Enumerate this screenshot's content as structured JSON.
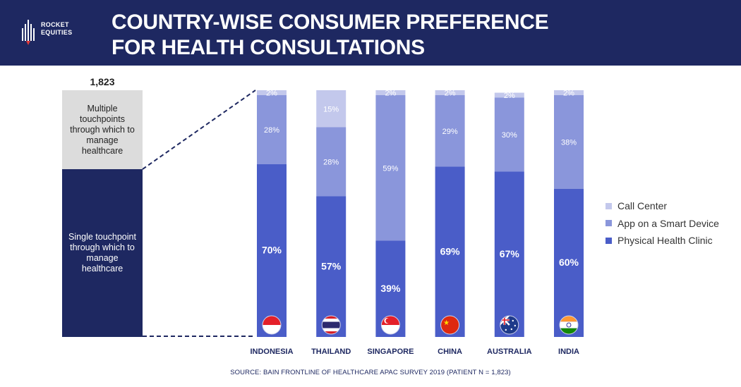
{
  "header": {
    "logo_line1": "ROCKET",
    "logo_line2": "EQUITIES",
    "title_line1": "COUNTRY-WISE CONSUMER PREFERENCE",
    "title_line2": "FOR HEALTH CONSULTATIONS"
  },
  "summary": {
    "total": "1,823",
    "multi_label": "Multiple touchpoints through which to manage healthcare",
    "single_label": "Single touchpoint through which to manage healthcare"
  },
  "legend": {
    "items": [
      "Call Center",
      "App on a Smart Device",
      "Physical Health Clinic"
    ]
  },
  "source": "SOURCE: BAIN FRONTLINE OF HEALTHCARE APAC SURVEY 2019 (PATIENT N = 1,823)",
  "colors": {
    "header_bg": "#1e2861",
    "clinic": "#4a5dc8",
    "app": "#8a96db",
    "call_center": "#c3c8ec",
    "multi_box": "#dcdcdc",
    "single_box": "#1e2861"
  },
  "chart_data": {
    "type": "bar",
    "stacked": true,
    "normalized": true,
    "categories": [
      "INDONESIA",
      "THAILAND",
      "SINGAPORE",
      "CHINA",
      "AUSTRALIA",
      "INDIA"
    ],
    "flags": [
      "indonesia-flag",
      "thailand-flag",
      "singapore-flag",
      "china-flag",
      "australia-flag",
      "india-flag"
    ],
    "series": [
      {
        "name": "Physical Health Clinic",
        "values": [
          70,
          57,
          39,
          69,
          67,
          60
        ],
        "labels": [
          "70%",
          "57%",
          "39%",
          "69%",
          "67%",
          "60%"
        ]
      },
      {
        "name": "App on a Smart Device",
        "values": [
          28,
          28,
          59,
          29,
          30,
          38
        ],
        "labels": [
          "28%",
          "28%",
          "59%",
          "29%",
          "30%",
          "38%"
        ]
      },
      {
        "name": "Call Center",
        "values": [
          2,
          15,
          2,
          2,
          2,
          2
        ],
        "labels": [
          "2%",
          "15%",
          "2%",
          "2%",
          "2%",
          "2%"
        ]
      }
    ],
    "ylim": [
      0,
      100
    ],
    "legend_position": "right"
  }
}
